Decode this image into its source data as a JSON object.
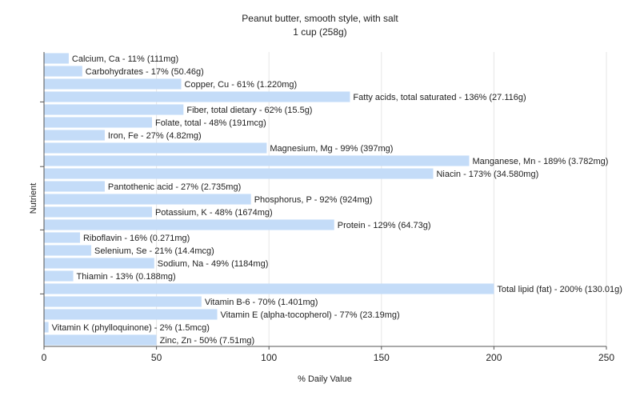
{
  "chart_data": {
    "type": "bar",
    "orientation": "horizontal",
    "title": "Peanut butter, smooth style, with salt",
    "subtitle": "1 cup (258g)",
    "xlabel": "% Daily Value",
    "ylabel": "Nutrient",
    "xlim": [
      0,
      250
    ],
    "xticks": [
      "0",
      "50",
      "100",
      "150",
      "200",
      "250"
    ],
    "grid": true,
    "bar_color": "#c4dcf8",
    "categories": [
      "Calcium, Ca",
      "Carbohydrates",
      "Copper, Cu",
      "Fatty acids, total saturated",
      "Fiber, total dietary",
      "Folate, total",
      "Iron, Fe",
      "Magnesium, Mg",
      "Manganese, Mn",
      "Niacin",
      "Pantothenic acid",
      "Phosphorus, P",
      "Potassium, K",
      "Protein",
      "Riboflavin",
      "Selenium, Se",
      "Sodium, Na",
      "Thiamin",
      "Total lipid (fat)",
      "Vitamin B-6",
      "Vitamin E (alpha-tocopherol)",
      "Vitamin K (phylloquinone)",
      "Zinc, Zn"
    ],
    "values": [
      11,
      17,
      61,
      136,
      62,
      48,
      27,
      99,
      189,
      173,
      27,
      92,
      48,
      129,
      16,
      21,
      49,
      13,
      200,
      70,
      77,
      2,
      50
    ],
    "labels": [
      "Calcium, Ca - 11% (111mg)",
      "Carbohydrates - 17% (50.46g)",
      "Copper, Cu - 61% (1.220mg)",
      "Fatty acids, total saturated - 136% (27.116g)",
      "Fiber, total dietary - 62% (15.5g)",
      "Folate, total - 48% (191mcg)",
      "Iron, Fe - 27% (4.82mg)",
      "Magnesium, Mg - 99% (397mg)",
      "Manganese, Mn - 189% (3.782mg)",
      "Niacin - 173% (34.580mg)",
      "Pantothenic acid - 27% (2.735mg)",
      "Phosphorus, P - 92% (924mg)",
      "Potassium, K - 48% (1674mg)",
      "Protein - 129% (64.73g)",
      "Riboflavin - 16% (0.271mg)",
      "Selenium, Se - 21% (14.4mcg)",
      "Sodium, Na - 49% (1184mg)",
      "Thiamin - 13% (0.188mg)",
      "Total lipid (fat) - 200% (130.01g)",
      "Vitamin B-6 - 70% (1.401mg)",
      "Vitamin E (alpha-tocopherol) - 77% (23.19mg)",
      "Vitamin K (phylloquinone) - 2% (1.5mcg)",
      "Zinc, Zn - 50% (7.51mg)"
    ]
  }
}
